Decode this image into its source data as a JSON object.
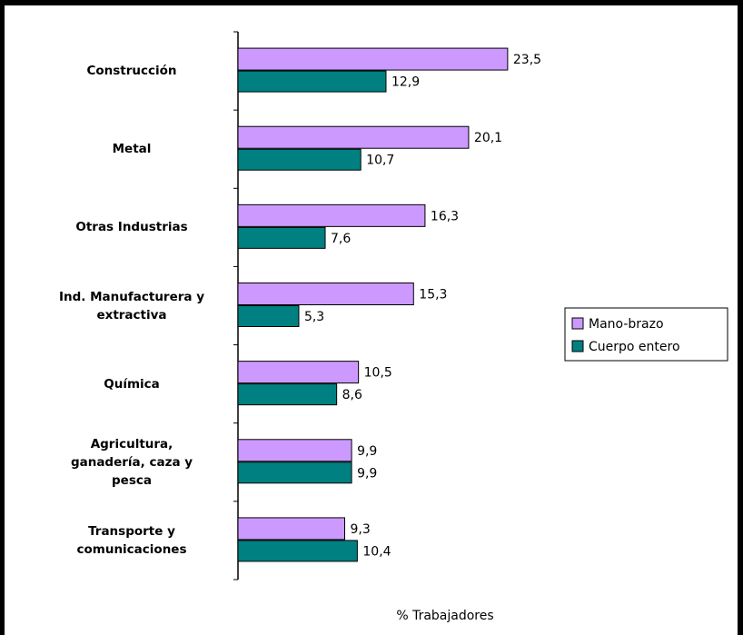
{
  "chart_data": {
    "type": "hbar",
    "x_label": "% Trabajadores",
    "categories": [
      "Construcción",
      "Metal",
      "Otras Industrias",
      "Ind. Manufacturera y\nextractiva",
      "Química",
      "Agricultura,\nganadería, caza y\npesca",
      "Transporte y\ncomunicaciones"
    ],
    "series": [
      {
        "name": "Mano-brazo",
        "color": "#cc99ff",
        "values": [
          23.5,
          20.1,
          16.3,
          15.3,
          10.5,
          9.9,
          9.3
        ],
        "value_labels": [
          "23,5",
          "20,1",
          "16,3",
          "15,3",
          "10,5",
          "9,9",
          "9,3"
        ]
      },
      {
        "name": "Cuerpo entero",
        "color": "#008080",
        "values": [
          12.9,
          10.7,
          7.6,
          5.3,
          8.6,
          9.9,
          10.4
        ],
        "value_labels": [
          "12,9",
          "10,7",
          "7,6",
          "5,3",
          "8,6",
          "9,9",
          "10,4"
        ]
      }
    ],
    "xlim": [
      0,
      30
    ]
  }
}
